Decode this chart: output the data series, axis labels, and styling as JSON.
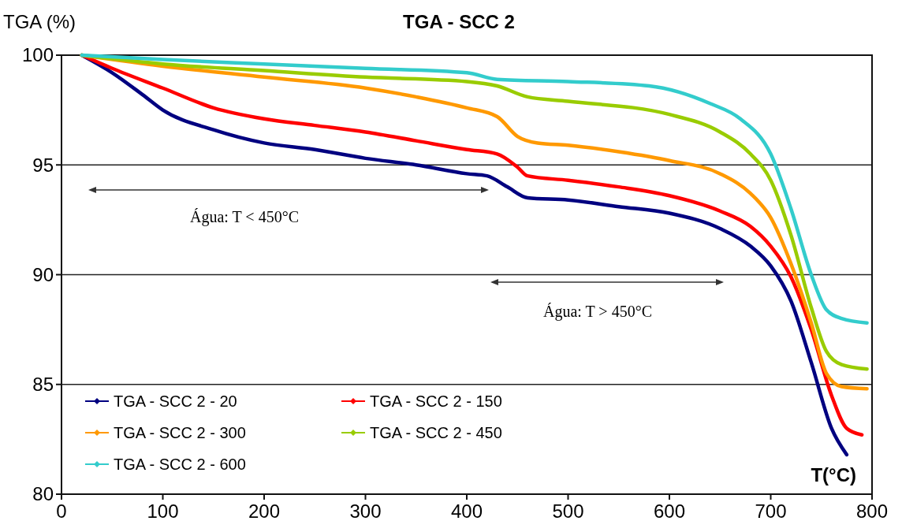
{
  "chart_data": {
    "type": "line",
    "title": "TGA - SCC 2",
    "xlabel": "T(°C)",
    "ylabel": "TGA (%)",
    "xlim": [
      0,
      800
    ],
    "xticks": [
      0,
      100,
      200,
      300,
      400,
      500,
      600,
      700,
      800
    ],
    "ylim": [
      80,
      100
    ],
    "yticks": [
      80,
      85,
      90,
      95,
      100
    ],
    "grid": "y",
    "legend": "bottom left",
    "marker": "none",
    "line_style": "solid",
    "annotations": [
      "Água: T < 450°C",
      "Água: T > 450°C"
    ],
    "series": [
      {
        "name": "TGA - SCC 2 - 20",
        "color": "#000080",
        "x": [
          20,
          50,
          80,
          100,
          150,
          200,
          250,
          300,
          350,
          400,
          420,
          440,
          460,
          500,
          550,
          600,
          650,
          680,
          700,
          720,
          740,
          760,
          775
        ],
        "values": [
          100,
          99.2,
          98.2,
          97.5,
          96.6,
          96.0,
          95.7,
          95.3,
          95.0,
          94.6,
          94.5,
          94.0,
          93.5,
          93.4,
          93.1,
          92.8,
          92.1,
          91.3,
          90.4,
          88.8,
          86.0,
          83.0,
          81.8
        ]
      },
      {
        "name": "TGA - SCC 2 - 150",
        "color": "#ff0000",
        "x": [
          20,
          50,
          100,
          150,
          200,
          250,
          300,
          350,
          400,
          430,
          450,
          460,
          500,
          550,
          600,
          650,
          680,
          700,
          720,
          740,
          760,
          775,
          790
        ],
        "values": [
          100,
          99.4,
          98.5,
          97.6,
          97.1,
          96.8,
          96.5,
          96.1,
          95.7,
          95.5,
          94.9,
          94.5,
          94.3,
          94.0,
          93.6,
          92.9,
          92.2,
          91.3,
          89.9,
          87.5,
          84.5,
          83.0,
          82.7
        ]
      },
      {
        "name": "TGA - SCC 2 - 300",
        "color": "#ff9900",
        "x": [
          20,
          100,
          200,
          300,
          350,
          400,
          430,
          450,
          470,
          500,
          550,
          600,
          650,
          680,
          700,
          720,
          740,
          755,
          770,
          795
        ],
        "values": [
          100,
          99.5,
          99.0,
          98.5,
          98.1,
          97.6,
          97.2,
          96.3,
          96.0,
          95.9,
          95.6,
          95.2,
          94.6,
          93.7,
          92.6,
          90.5,
          87.8,
          85.5,
          84.9,
          84.8
        ]
      },
      {
        "name": "TGA - SCC 2 - 450",
        "color": "#99cc00",
        "x": [
          20,
          100,
          200,
          300,
          400,
          430,
          460,
          500,
          600,
          650,
          680,
          700,
          720,
          740,
          755,
          770,
          795
        ],
        "values": [
          100,
          99.6,
          99.3,
          99.0,
          98.8,
          98.6,
          98.1,
          97.9,
          97.3,
          96.5,
          95.5,
          94.3,
          91.8,
          88.5,
          86.5,
          85.9,
          85.7
        ]
      },
      {
        "name": "TGA - SCC 2 - 600",
        "color": "#33cccc",
        "x": [
          20,
          100,
          200,
          300,
          400,
          430,
          500,
          580,
          640,
          670,
          700,
          720,
          740,
          755,
          770,
          795
        ],
        "values": [
          100,
          99.8,
          99.6,
          99.4,
          99.2,
          98.9,
          98.8,
          98.6,
          97.8,
          97.1,
          95.5,
          93.0,
          90.0,
          88.4,
          88.0,
          87.8
        ]
      }
    ]
  }
}
